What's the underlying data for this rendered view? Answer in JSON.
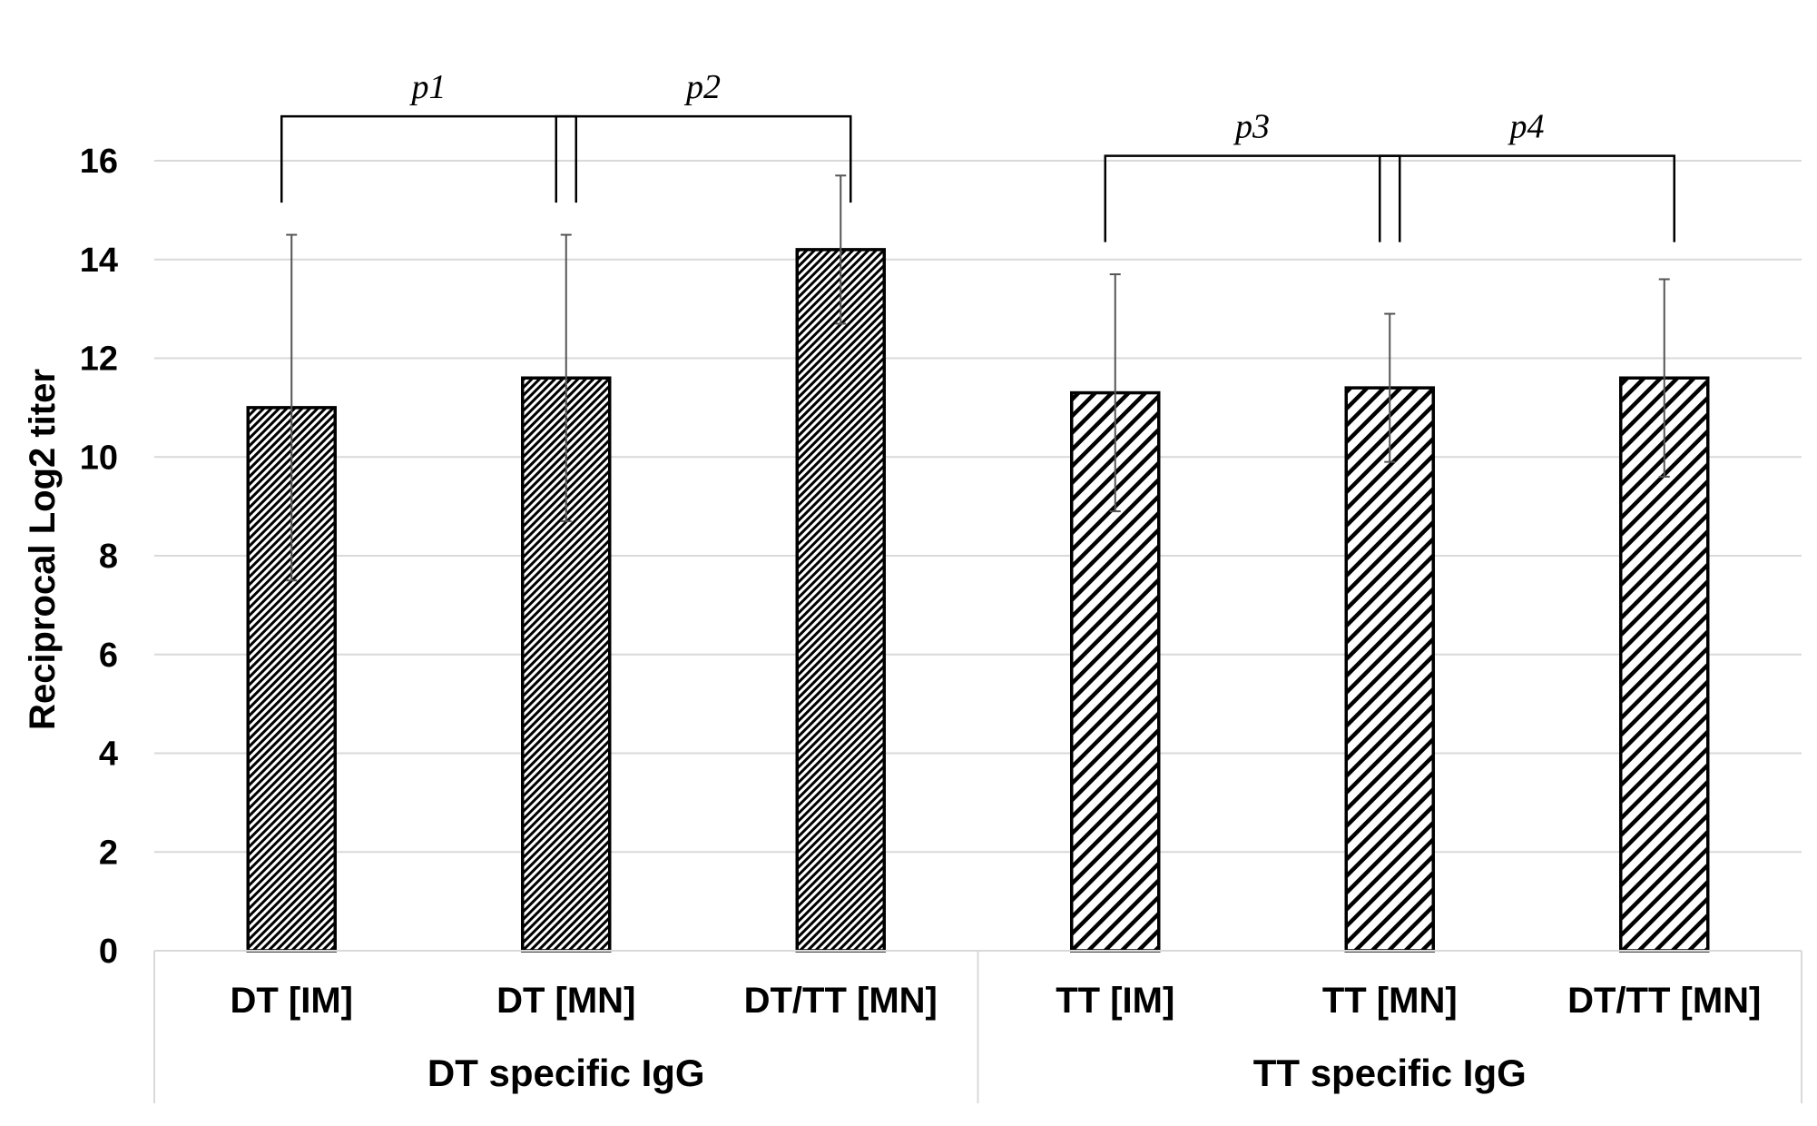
{
  "chart_data": {
    "type": "bar",
    "title": "",
    "xlabel": "",
    "ylabel": "Reciprocal Log2 titer",
    "ylim": [
      0,
      16
    ],
    "yticks": [
      0,
      2,
      4,
      6,
      8,
      10,
      12,
      14,
      16
    ],
    "grid": true,
    "categories": [
      "DT [IM]",
      "DT [MN]",
      "DT/TT [MN]",
      "TT [IM]",
      "TT [MN]",
      "DT/TT [MN]"
    ],
    "groups": [
      {
        "label": "DT specific IgG",
        "start": 0,
        "end": 2,
        "pattern": "fine-diagonal"
      },
      {
        "label": "TT specific IgG",
        "start": 3,
        "end": 5,
        "pattern": "wide-diagonal"
      }
    ],
    "values": [
      11.0,
      11.6,
      14.2,
      11.3,
      11.4,
      11.6
    ],
    "errors": [
      3.5,
      2.9,
      1.5,
      2.4,
      1.5,
      2.0
    ],
    "comparisons": [
      {
        "label": "p1",
        "from": 0,
        "to": 1,
        "level": 16.9
      },
      {
        "label": "p2",
        "from": 1,
        "to": 2,
        "level": 16.9
      },
      {
        "label": "p3",
        "from": 3,
        "to": 4,
        "level": 16.1
      },
      {
        "label": "p4",
        "from": 4,
        "to": 5,
        "level": 16.1
      }
    ],
    "colors": {
      "bar_fill": "#ffffff",
      "bar_stroke": "#000000",
      "grid": "#d9d9d9",
      "error": "#555555"
    }
  }
}
